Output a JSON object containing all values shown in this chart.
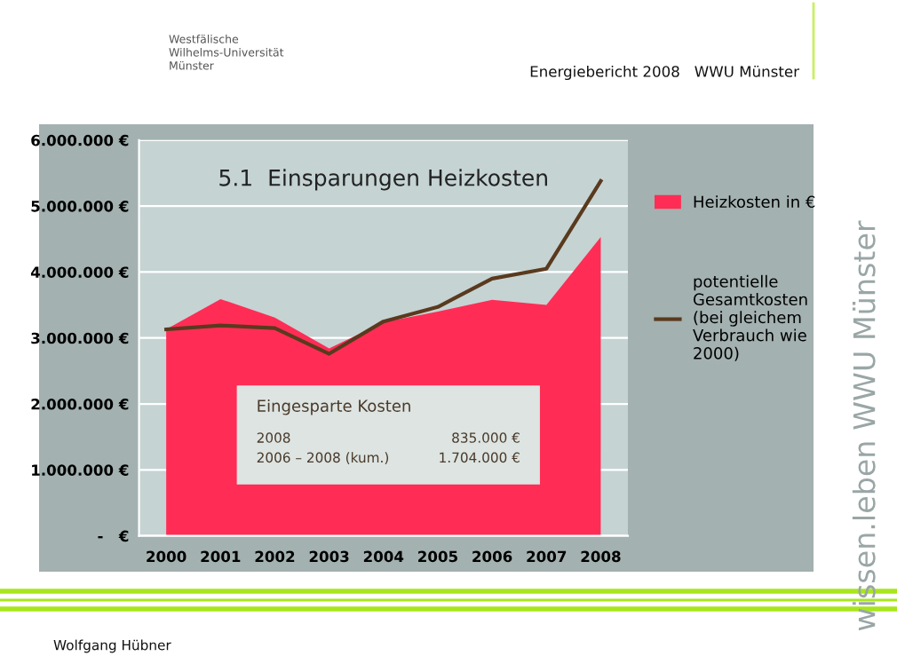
{
  "chart_data": {
    "type": "area",
    "title": "5.1  Einsparungen Heizkosten",
    "categories": [
      "2000",
      "2001",
      "2002",
      "2003",
      "2004",
      "2005",
      "2006",
      "2007",
      "2008"
    ],
    "series": [
      {
        "name": "Heizkosten in €",
        "color": "#ff2d55",
        "values": [
          3130000,
          3590000,
          3310000,
          2840000,
          3240000,
          3400000,
          3580000,
          3500000,
          4530000
        ]
      },
      {
        "name": "potentielle Gesamtkosten (bei gleichem Verbrauch wie 2000)",
        "type": "line",
        "color": "#5a3a1e",
        "values": [
          3130000,
          3190000,
          3150000,
          2760000,
          3250000,
          3470000,
          3900000,
          4050000,
          5380000
        ]
      }
    ],
    "ylim": [
      0,
      6000000
    ],
    "yticks": [
      {
        "value": 0,
        "label": "-   €"
      },
      {
        "value": 1000000,
        "label": "1.000.000 €"
      },
      {
        "value": 2000000,
        "label": "2.000.000 €"
      },
      {
        "value": 3000000,
        "label": "3.000.000 €"
      },
      {
        "value": 4000000,
        "label": "4.000.000 €"
      },
      {
        "value": 5000000,
        "label": "5.000.000 €"
      },
      {
        "value": 6000000,
        "label": "6.000.000 €"
      }
    ],
    "grid": "y",
    "legend": "right",
    "annotations": [
      "Eingesparte Kosten",
      "2008",
      "835.000 €",
      "2006 – 2008 (kum.)",
      "1.704.000 €",
      "Westfälische Wilhelms-Universität Münster",
      "Energiebericht 2008   WWU Münster",
      "Wolfgang Hübner",
      "wissen.leben WWU Münster"
    ]
  }
}
